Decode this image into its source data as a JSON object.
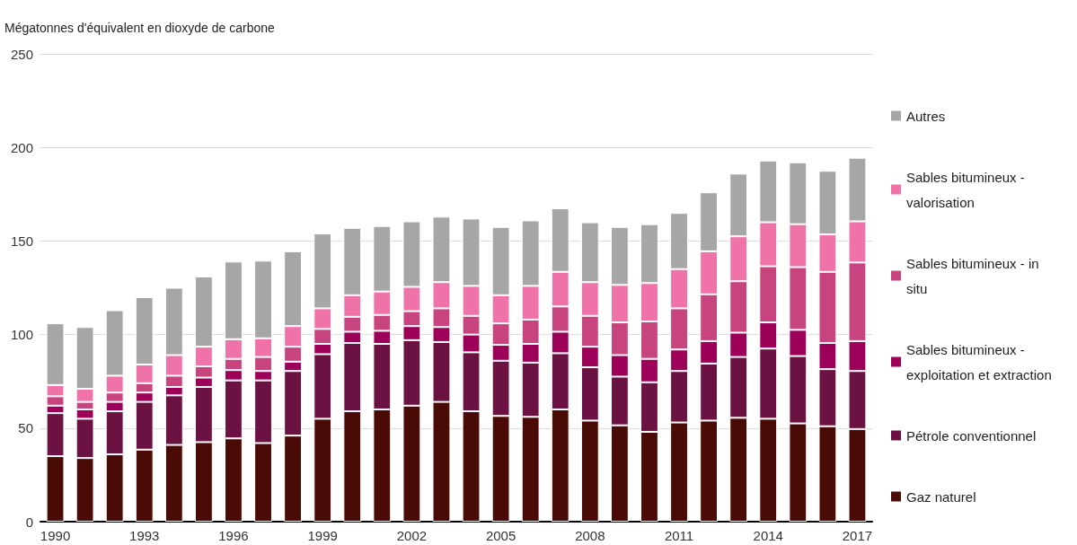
{
  "chart_data": {
    "type": "bar",
    "stacked": true,
    "ylabel": "Mégatonnes d'équivalent en dioxyde de carbone",
    "categories": [
      "1990",
      null,
      null,
      "1993",
      null,
      null,
      "1996",
      null,
      null,
      "1999",
      null,
      null,
      "2002",
      null,
      null,
      "2005",
      null,
      null,
      "2008",
      null,
      null,
      "2011",
      null,
      null,
      "2014",
      null,
      null,
      "2017"
    ],
    "series": [
      {
        "name": "Gaz naturel",
        "color": "#4a0a05",
        "values": [
          35,
          34,
          36,
          38.5,
          41,
          42.5,
          44.5,
          42,
          46,
          55,
          59,
          60,
          62,
          64,
          59,
          56.5,
          56,
          60,
          54,
          51.5,
          48,
          53,
          54,
          55.5,
          55,
          52.5,
          51,
          49.5
        ]
      },
      {
        "name": "Pétrole conventionnel",
        "color": "#6b1242",
        "values": [
          23,
          21,
          23,
          25.5,
          26.5,
          29.5,
          31,
          33.5,
          34.5,
          34.5,
          36.5,
          35,
          35,
          32,
          31.5,
          29.5,
          29,
          30,
          28.5,
          26,
          26.5,
          27.5,
          30.5,
          32.5,
          37.5,
          36,
          30.5,
          31
        ]
      },
      {
        "name": "Sables bitumineux - exploitation et extraction",
        "color": "#9c0059",
        "values": [
          4,
          5,
          5,
          5,
          4.5,
          5,
          5.5,
          5,
          5,
          5.5,
          6,
          7,
          7.5,
          8,
          9.5,
          8.5,
          10,
          11.5,
          11,
          11.5,
          12.5,
          11.5,
          12,
          13,
          14,
          14,
          14,
          16
        ]
      },
      {
        "name": "Sables bitumineux - in situ",
        "color": "#c8447e",
        "values": [
          5,
          4,
          5,
          5,
          6,
          6,
          6,
          7.5,
          8,
          8,
          8,
          8.5,
          8,
          10,
          10,
          11.5,
          13,
          13.5,
          16.5,
          17.5,
          20,
          22,
          25,
          27.5,
          30,
          33.5,
          38,
          42
        ]
      },
      {
        "name": "Sables bitumineux - valorisation",
        "color": "#ef72a8",
        "values": [
          6,
          7,
          9,
          10,
          11,
          10.5,
          10.5,
          10,
          11,
          11,
          11.5,
          12.5,
          13,
          14,
          16,
          15,
          18,
          18.5,
          18,
          20,
          20.5,
          21,
          23,
          24,
          23.5,
          23,
          20,
          22
        ]
      },
      {
        "name": "Autres",
        "color": "#a6a6a6",
        "values": [
          33,
          33,
          35,
          36,
          36,
          37.5,
          41.5,
          41.5,
          40,
          40,
          36,
          35,
          35,
          35,
          36,
          36.5,
          35,
          34,
          32,
          31,
          31.5,
          30,
          31.5,
          33.5,
          33,
          33,
          34,
          34
        ]
      }
    ],
    "ylim": [
      0,
      250
    ],
    "yticks": [
      0,
      50,
      100,
      150,
      200,
      250
    ],
    "grid": "y",
    "legend": "right"
  }
}
